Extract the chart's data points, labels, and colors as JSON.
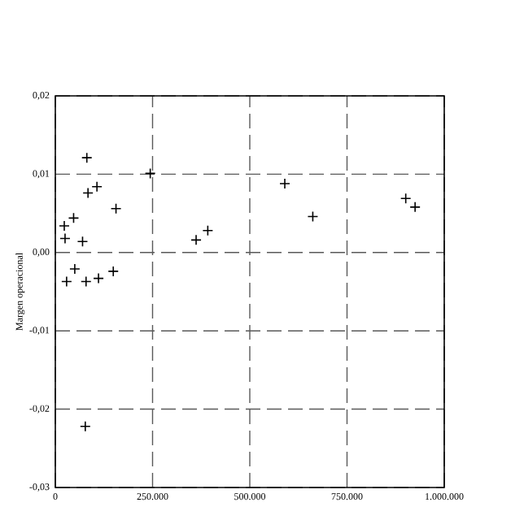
{
  "chart_data": {
    "type": "scatter",
    "ylabel": "Margen operacional",
    "color": "#000000",
    "marker": "cross",
    "grid": true,
    "line_style": "dashed",
    "x": [
      23000,
      25000,
      47000,
      70000,
      81000,
      84000,
      107000,
      156000,
      244000,
      29000,
      50000,
      79000,
      111000,
      149000,
      362000,
      392000,
      590000,
      662000,
      901000,
      925000,
      77000
    ],
    "values": [
      0.0034,
      0.0018,
      0.0044,
      0.0014,
      0.0121,
      0.0076,
      0.0084,
      0.0056,
      0.0101,
      -0.0037,
      -0.0021,
      -0.0037,
      -0.0033,
      -0.0024,
      0.0016,
      0.0028,
      0.0088,
      0.0046,
      0.0069,
      0.0058,
      -0.0222
    ],
    "xlim": [
      0,
      1000000
    ],
    "ylim": [
      -0.03,
      0.02
    ],
    "xticks": [
      0,
      {
        "value": 250000,
        "label": "250.000"
      },
      {
        "value": 500000,
        "label": "500.000"
      },
      {
        "value": 750000,
        "label": "750.000"
      },
      {
        "value": 1000000,
        "label": "1.000.000"
      }
    ],
    "yticks": [
      {
        "value": -0.03,
        "label": "-0,03"
      },
      {
        "value": -0.02,
        "label": "-0,02"
      },
      {
        "value": -0.01,
        "label": "-0,01"
      },
      {
        "value": 0,
        "label": "0,00"
      },
      {
        "value": 0.01,
        "label": "0,01"
      },
      {
        "value": 0.02,
        "label": "0,02"
      }
    ]
  }
}
